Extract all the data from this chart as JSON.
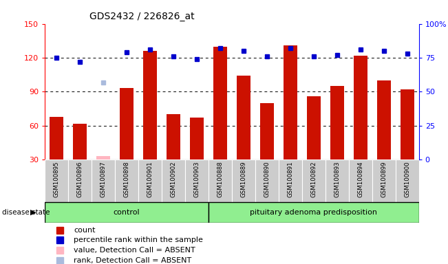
{
  "title": "GDS2432 / 226826_at",
  "samples": [
    "GSM100895",
    "GSM100896",
    "GSM100897",
    "GSM100898",
    "GSM100901",
    "GSM100902",
    "GSM100903",
    "GSM100888",
    "GSM100889",
    "GSM100890",
    "GSM100891",
    "GSM100892",
    "GSM100893",
    "GSM100894",
    "GSM100899",
    "GSM100900"
  ],
  "count_values": [
    68,
    62,
    null,
    93,
    126,
    70,
    67,
    130,
    104,
    80,
    131,
    86,
    95,
    122,
    100,
    92
  ],
  "rank_values": [
    75,
    72,
    null,
    79,
    81,
    76,
    74,
    82,
    80,
    76,
    82,
    76,
    77,
    81,
    80,
    78
  ],
  "absent_count": [
    null,
    null,
    33,
    null,
    null,
    null,
    null,
    null,
    null,
    null,
    null,
    null,
    null,
    null,
    null,
    null
  ],
  "absent_rank": [
    null,
    null,
    57,
    null,
    null,
    null,
    null,
    null,
    null,
    null,
    null,
    null,
    null,
    null,
    null,
    null
  ],
  "groups": [
    {
      "label": "control",
      "start": 0,
      "end": 7
    },
    {
      "label": "pituitary adenoma predisposition",
      "start": 7,
      "end": 16
    }
  ],
  "ylim_left": [
    30,
    150
  ],
  "ylim_right": [
    0,
    100
  ],
  "yticks_left": [
    30,
    60,
    90,
    120,
    150
  ],
  "yticks_right": [
    0,
    25,
    50,
    75,
    100
  ],
  "bar_color": "#CC1100",
  "dot_color": "#0000CC",
  "absent_bar_color": "#FFB6C1",
  "absent_dot_color": "#AABBDD",
  "legend_items": [
    {
      "label": "count",
      "color": "#CC1100"
    },
    {
      "label": "percentile rank within the sample",
      "color": "#0000CC"
    },
    {
      "label": "value, Detection Call = ABSENT",
      "color": "#FFB6C1"
    },
    {
      "label": "rank, Detection Call = ABSENT",
      "color": "#AABBDD"
    }
  ]
}
